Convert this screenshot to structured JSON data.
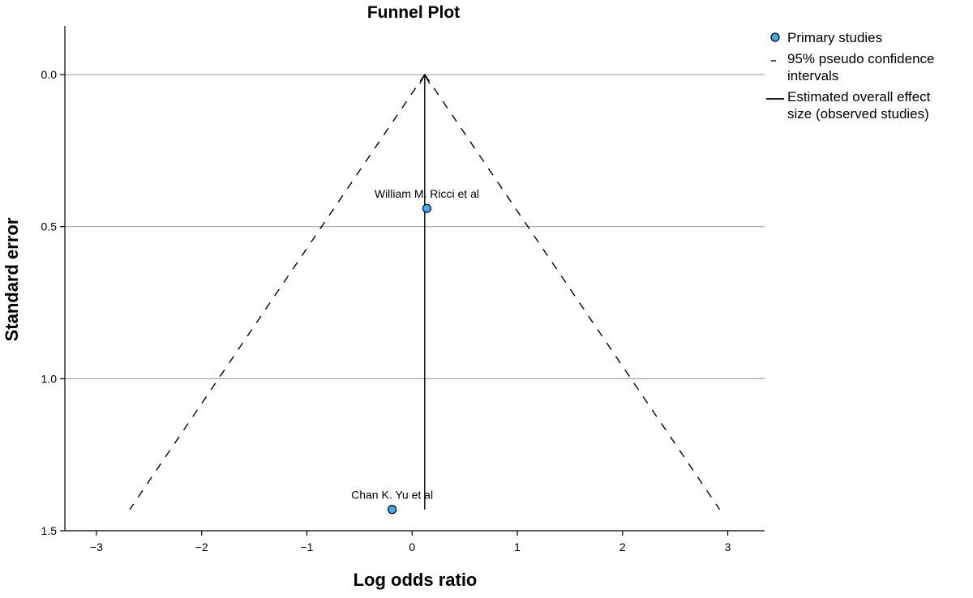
{
  "chart_data": {
    "type": "scatter",
    "title": "Funnel Plot",
    "xlabel": "Log odds ratio",
    "ylabel": "Standard error",
    "xlim": [
      -3.3,
      3.35
    ],
    "ylim": [
      -0.16,
      1.5
    ],
    "y_inverted": true,
    "xticks": [
      -3,
      -2,
      -1,
      0,
      1,
      2,
      3
    ],
    "xtick_labels": [
      "−3",
      "−2",
      "−1",
      "0",
      "1",
      "2",
      "3"
    ],
    "yticks": [
      0.0,
      0.5,
      1.0,
      1.5
    ],
    "ytick_labels": [
      "0.0",
      "0.5",
      "1.0",
      "1.5"
    ],
    "grid": "horizontal",
    "legend_position": "top-right, outside plot",
    "overall_effect": 0.12,
    "pseudo_ci_bottom_se": 1.43,
    "series": [
      {
        "name": "Primary studies",
        "color": "#3fa9f5",
        "points": [
          {
            "label": "William M. Ricci et al",
            "x": 0.14,
            "y": 0.44
          },
          {
            "label": "Chan K. Yu et al",
            "x": -0.19,
            "y": 1.43
          }
        ]
      }
    ],
    "legend": [
      {
        "type": "marker",
        "lines": [
          "Primary studies"
        ]
      },
      {
        "type": "dashed",
        "lines": [
          "95% pseudo confidence",
          "intervals"
        ]
      },
      {
        "type": "solid",
        "lines": [
          "Estimated overall effect",
          "size (observed studies)"
        ]
      }
    ]
  }
}
